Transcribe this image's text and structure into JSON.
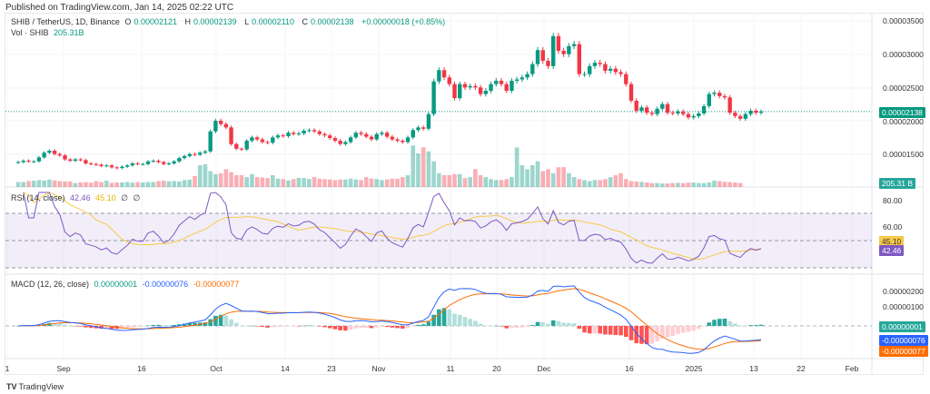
{
  "published": "Published on TradingView.com, Jan 14, 2025 02:22 UTC",
  "header": {
    "symbol": "SHIB / TetherUS, 1D, Binance",
    "o_label": "O",
    "o": "0.00002121",
    "h_label": "H",
    "h": "0.00002139",
    "l_label": "L",
    "l": "0.00002110",
    "c_label": "C",
    "c": "0.00002138",
    "change": "+0.00000018 (+0.85%)",
    "vol_label": "Vol · SHIB",
    "vol": "205.31B"
  },
  "rsi_legend": {
    "title": "RSI (14, close)",
    "rsi": "42.46",
    "ma": "45.10",
    "extra1": "∅",
    "extra2": "∅"
  },
  "macd_legend": {
    "title": "MACD (12, 26, close)",
    "hist": "0.00000001",
    "macd": "-0.00000076",
    "signal": "-0.00000077"
  },
  "price_axis": [
    "0.00003500",
    "0.00003000",
    "0.00002500",
    "0.00002000",
    "0.00001500"
  ],
  "price_tag": "0.00002138",
  "volume_tag": "205.31 B",
  "rsi_axis": [
    "80.00",
    "60.00"
  ],
  "rsi_tags": {
    "ma": "45.10",
    "rsi": "42.46"
  },
  "macd_axis": [
    "0.00000200",
    "0.00000100"
  ],
  "macd_tags": {
    "hist": "0.00000001",
    "macd": "-0.00000076",
    "signal": "-0.00000077"
  },
  "x_ticks": [
    "1",
    "Sep",
    "16",
    "Oct",
    "14",
    "23",
    "Nov",
    "11",
    "20",
    "Dec",
    "16",
    "2025",
    "13",
    "22",
    "Feb"
  ],
  "footer": {
    "brand": "TradingView"
  },
  "colors": {
    "up": "#089981",
    "down": "#f23645",
    "rsi": "#7e57c2",
    "rsi_ma": "#f7c948",
    "macd": "#2962ff",
    "signal": "#ff6d00"
  },
  "chart_data": {
    "type": "candlestick",
    "symbol": "SHIB / TetherUS",
    "interval": "1D",
    "closes": [
      1.38e-05,
      1.4e-05,
      1.39e-05,
      1.39e-05,
      1.45e-05,
      1.52e-05,
      1.55e-05,
      1.5e-05,
      1.48e-05,
      1.42e-05,
      1.4e-05,
      1.42e-05,
      1.41e-05,
      1.36e-05,
      1.35e-05,
      1.34e-05,
      1.32e-05,
      1.33e-05,
      1.3e-05,
      1.29e-05,
      1.31e-05,
      1.33e-05,
      1.36e-05,
      1.35e-05,
      1.35e-05,
      1.39e-05,
      1.4e-05,
      1.38e-05,
      1.35e-05,
      1.36e-05,
      1.39e-05,
      1.44e-05,
      1.47e-05,
      1.5e-05,
      1.49e-05,
      1.52e-05,
      1.54e-05,
      1.84e-05,
      2e-05,
      1.95e-05,
      1.9e-05,
      1.65e-05,
      1.58e-05,
      1.57e-05,
      1.7e-05,
      1.75e-05,
      1.72e-05,
      1.68e-05,
      1.67e-05,
      1.75e-05,
      1.78e-05,
      1.77e-05,
      1.82e-05,
      1.8e-05,
      1.81e-05,
      1.85e-05,
      1.86e-05,
      1.84e-05,
      1.8e-05,
      1.78e-05,
      1.74e-05,
      1.7e-05,
      1.65e-05,
      1.68e-05,
      1.75e-05,
      1.82e-05,
      1.8e-05,
      1.76e-05,
      1.72e-05,
      1.8e-05,
      1.82e-05,
      1.76e-05,
      1.72e-05,
      1.7e-05,
      1.68e-05,
      1.75e-05,
      1.86e-05,
      1.9e-05,
      1.88e-05,
      2.1e-05,
      2.59e-05,
      2.76e-05,
      2.65e-05,
      2.55e-05,
      2.34e-05,
      2.55e-05,
      2.5e-05,
      2.52e-05,
      2.5e-05,
      2.4e-05,
      2.45e-05,
      2.55e-05,
      2.6e-05,
      2.55e-05,
      2.45e-05,
      2.6e-05,
      2.62e-05,
      2.65e-05,
      2.7e-05,
      2.85e-05,
      3.06e-05,
      2.9e-05,
      2.82e-05,
      3.27e-05,
      3.05e-05,
      3e-05,
      3.12e-05,
      3.15e-05,
      2.7e-05,
      2.7e-05,
      2.82e-05,
      2.87e-05,
      2.85e-05,
      2.75e-05,
      2.78e-05,
      2.73e-05,
      2.7e-05,
      2.55e-05,
      2.3e-05,
      2.15e-05,
      2.2e-05,
      2.12e-05,
      2.1e-05,
      2.18e-05,
      2.25e-05,
      2.12e-05,
      2.11e-05,
      2.14e-05,
      2.1e-05,
      2.05e-05,
      2.07e-05,
      2.11e-05,
      2.22e-05,
      2.4e-05,
      2.42e-05,
      2.37e-05,
      2.35e-05,
      2.12e-05,
      2.07e-05,
      2.03e-05,
      2.1e-05,
      2.15e-05,
      2.12e-05,
      2.138e-05
    ],
    "volumes_billion": [
      250,
      250,
      300,
      320,
      350,
      330,
      380,
      330,
      300,
      280,
      280,
      200,
      230,
      250,
      220,
      300,
      250,
      320,
      210,
      230,
      230,
      250,
      220,
      250,
      230,
      250,
      250,
      300,
      320,
      290,
      300,
      280,
      350,
      370,
      550,
      1100,
      1150,
      800,
      650,
      700,
      900,
      750,
      600,
      600,
      500,
      650,
      500,
      480,
      450,
      600,
      420,
      400,
      330,
      400,
      460,
      450,
      400,
      500,
      420,
      400,
      380,
      350,
      380,
      380,
      420,
      380,
      350,
      500,
      420,
      400,
      350,
      380,
      420,
      420,
      500,
      600,
      2100,
      1700,
      2000,
      1800,
      1300,
      700,
      600,
      600,
      650,
      650,
      450,
      500,
      900,
      600,
      500,
      400,
      350,
      360,
      400,
      500,
      2000,
      1100,
      900,
      1100,
      1300,
      800,
      900,
      700,
      1000,
      1000,
      700,
      500,
      400,
      350,
      300,
      350,
      350,
      400,
      500,
      600,
      700,
      400,
      300,
      280,
      260,
      230,
      200,
      200,
      180,
      180,
      200,
      210,
      200,
      220,
      220,
      200,
      200,
      230,
      320,
      300,
      260,
      250,
      230,
      205.31
    ],
    "price_range": [
      1.2e-05,
      3.6e-05
    ],
    "indicators": [
      "Volume",
      "RSI (14, close) with MA",
      "MACD (12, 26, close)"
    ],
    "rsi_levels": [
      70,
      50,
      30
    ],
    "x_tick_labels": [
      "1",
      "Sep",
      "16",
      "Oct",
      "14",
      "23",
      "Nov",
      "11",
      "20",
      "Dec",
      "16",
      "2025",
      "13",
      "22",
      "Feb"
    ],
    "grid": true
  }
}
